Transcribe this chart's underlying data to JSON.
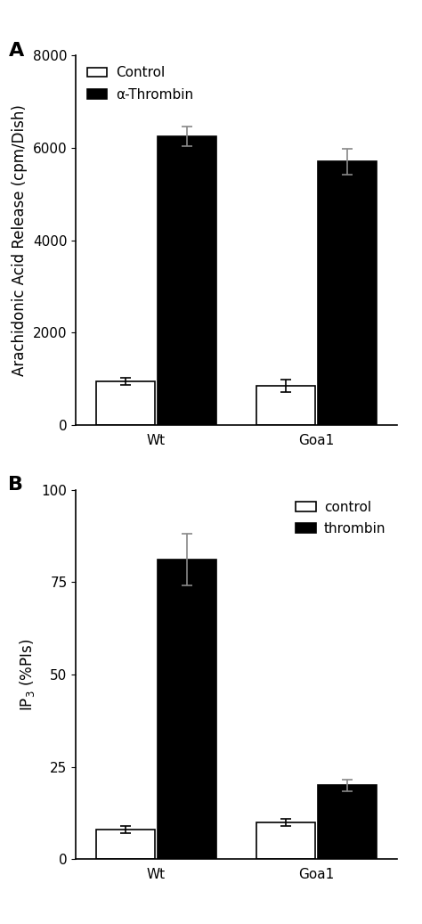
{
  "panel_A": {
    "title_label": "A",
    "groups": [
      "Wt",
      "Goa1"
    ],
    "control_values": [
      950,
      850
    ],
    "thrombin_values": [
      6250,
      5700
    ],
    "control_errors": [
      80,
      130
    ],
    "thrombin_errors": [
      220,
      280
    ],
    "ylabel": "Arachidonic Acid Release (cpm/Dish)",
    "xlabel_labels": [
      "Wt",
      "Goa1"
    ],
    "ylim": [
      0,
      8000
    ],
    "yticks": [
      0,
      2000,
      4000,
      6000,
      8000
    ],
    "legend_control": "Control",
    "legend_thrombin": "α-Thrombin",
    "bar_width": 0.55,
    "group_centers": [
      1.0,
      2.5
    ]
  },
  "panel_B": {
    "title_label": "B",
    "groups": [
      "Wt",
      "Goa1"
    ],
    "control_values": [
      8,
      10
    ],
    "thrombin_values": [
      81,
      20
    ],
    "control_errors": [
      1,
      1
    ],
    "thrombin_errors": [
      7,
      1.5
    ],
    "ylabel": "IP$_3$ (%PIs)",
    "xlabel_labels": [
      "Wt",
      "Goa1"
    ],
    "ylim": [
      0,
      100
    ],
    "yticks": [
      0,
      25,
      50,
      75,
      100
    ],
    "legend_control": "control",
    "legend_thrombin": "thrombin",
    "bar_width": 0.55,
    "group_centers": [
      1.0,
      2.5
    ]
  },
  "background_color": "#ffffff",
  "bar_color_control": "#ffffff",
  "bar_color_thrombin": "#000000",
  "bar_edge_color": "#000000",
  "errorbar_capsize": 4,
  "errorbar_linewidth": 1.2,
  "tick_fontsize": 11,
  "label_fontsize": 12,
  "legend_fontsize": 11,
  "panel_label_fontsize": 16
}
